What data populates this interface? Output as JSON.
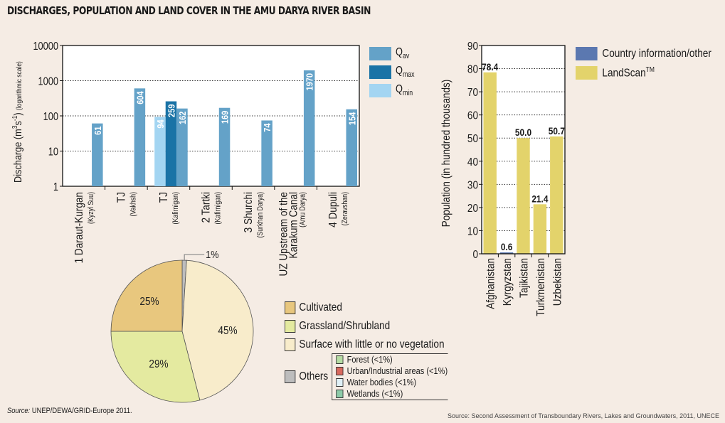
{
  "title": "DISCHARGES, POPULATION AND LAND COVER IN THE AMU DARYA RIVER BASIN",
  "colors": {
    "q_av": "#64a2c8",
    "q_max": "#1a73a6",
    "q_min": "#a3d5f2",
    "country_info": "#5b78b0",
    "landscan": "#e3d36b",
    "cultivated": "#e8c77e",
    "grassland": "#e4eaa0",
    "surface": "#f8eccb",
    "others": "#bdbdbd",
    "forest": "#b6dca4",
    "urban": "#d9695e",
    "water": "#dff0f7",
    "wetlands": "#8ccaa8"
  },
  "chart_data": [
    {
      "type": "bar",
      "scale": "log",
      "title": "",
      "xlabel": "",
      "ylabel": "Discharge (m³s⁻¹)",
      "ylabel_note": "(logarithmic scale)",
      "ylim": [
        1,
        10000
      ],
      "yticks": [
        "1",
        "10",
        "100",
        "1000",
        "10000"
      ],
      "grid": true,
      "legend_position": "right",
      "categories": [
        {
          "name": "1 Daraut-Kurgan",
          "river": "(Kyzyl Suu)"
        },
        {
          "name": "TJ",
          "river": "(Vakhsh)"
        },
        {
          "name": "TJ",
          "river": "(Kafirnigan)"
        },
        {
          "name": "2 Tartki",
          "river": "(Kafirnigan)"
        },
        {
          "name": "3 Shurchi",
          "river": "(Surkhan Darya)"
        },
        {
          "name": "UZ Upstream of the Karakum Canal",
          "name_lines": [
            "UZ Upstream of the",
            "Karakum Canal"
          ],
          "river": "(Amu Darya)"
        },
        {
          "name": "4 Dupuli",
          "river": "(Zeravshan)"
        }
      ],
      "series": [
        {
          "name": "Qmin",
          "label_main": "Q",
          "label_sub": "min",
          "values": [
            null,
            null,
            94,
            null,
            null,
            null,
            null
          ]
        },
        {
          "name": "Qmax",
          "label_main": "Q",
          "label_sub": "max",
          "values": [
            null,
            null,
            259,
            null,
            null,
            null,
            null
          ]
        },
        {
          "name": "Qav",
          "label_main": "Q",
          "label_sub": "av",
          "values": [
            61,
            604,
            162,
            169,
            74,
            1970,
            154
          ]
        }
      ],
      "data_labels": {
        "Qmin": [
          "",
          "",
          "94",
          "",
          "",
          "",
          ""
        ],
        "Qmax": [
          "",
          "",
          "259",
          "",
          "",
          "",
          ""
        ],
        "Qav": [
          "61",
          "604",
          "162",
          "169",
          "74",
          "1970",
          "154"
        ]
      }
    },
    {
      "type": "bar",
      "title": "",
      "xlabel": "",
      "ylabel": "Population (in hundred thousands)",
      "ylim": [
        0,
        90
      ],
      "yticks": [
        "0",
        "10",
        "20",
        "30",
        "40",
        "50",
        "60",
        "70",
        "80",
        "90"
      ],
      "grid": true,
      "legend_position": "right",
      "categories": [
        "Afghanistan",
        "Kyrgyzstan",
        "Tajikistan",
        "Turkmenistan",
        "Uzbekistan"
      ],
      "values": [
        78.4,
        0.6,
        50.0,
        21.4,
        50.7
      ],
      "data_labels": [
        "78.4",
        "0.6",
        "50.0",
        "21.4",
        "50.7"
      ],
      "source_series": [
        "LandScan",
        "Country information/other",
        "LandScan",
        "LandScan",
        "LandScan"
      ],
      "legend": [
        {
          "key": "country_info",
          "label": "Country information/other",
          "sup": ""
        },
        {
          "key": "landscan",
          "label": "LandScan",
          "sup": "TM"
        }
      ]
    },
    {
      "type": "pie",
      "title": "",
      "slices": [
        {
          "key": "others",
          "label": "Others",
          "value": 1,
          "data_label": "1%"
        },
        {
          "key": "surface",
          "label": "Surface with little or no vegetation",
          "value": 45,
          "data_label": "45%"
        },
        {
          "key": "grassland",
          "label": "Grassland/Shrubland",
          "value": 29,
          "data_label": "29%"
        },
        {
          "key": "cultivated",
          "label": "Cultivated",
          "value": 25,
          "data_label": "25%"
        }
      ],
      "legend": [
        {
          "key": "cultivated",
          "label": "Cultivated"
        },
        {
          "key": "grassland",
          "label": "Grassland/Shrubland"
        },
        {
          "key": "surface",
          "label": "Surface with little or no vegetation"
        },
        {
          "key": "others",
          "label": "Others"
        }
      ],
      "others_breakdown": [
        {
          "key": "forest",
          "label": "Forest (<1%)"
        },
        {
          "key": "urban",
          "label": "Urban/Industrial areas (<1%)"
        },
        {
          "key": "water",
          "label": "Water bodies (<1%)"
        },
        {
          "key": "wetlands",
          "label": "Wetlands (<1%)"
        }
      ]
    }
  ],
  "sources": {
    "left_prefix": "Source:",
    "left_text": " UNEP/DEWA/GRID-Europe 2011.",
    "right": "Source: Second Assessment of Transboundary Rivers, Lakes and Groundwaters, 2011, UNECE"
  }
}
